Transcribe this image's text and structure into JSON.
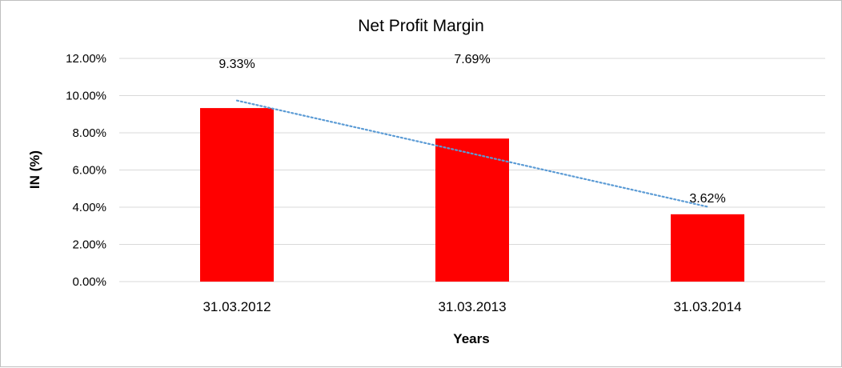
{
  "chart_data": {
    "type": "bar",
    "title": "Net Profit Margin",
    "xlabel": "Years",
    "ylabel": "IN (%)",
    "categories": [
      "31.03.2012",
      "31.03.2013",
      "31.03.2014"
    ],
    "values": [
      9.33,
      7.69,
      3.62
    ],
    "data_labels": [
      "9.33%",
      "7.69%",
      "3.62%"
    ],
    "ylim": [
      0,
      12
    ],
    "yticks": [
      0,
      2,
      4,
      6,
      8,
      10,
      12
    ],
    "ytick_labels": [
      "0.00%",
      "2.00%",
      "4.00%",
      "6.00%",
      "8.00%",
      "10.00%",
      "12.00%"
    ],
    "grid": true,
    "legend": "none",
    "bar_color": "#ff0000",
    "trendline": {
      "type": "linear",
      "style": "dotted",
      "color": "#5b9bd5"
    }
  }
}
